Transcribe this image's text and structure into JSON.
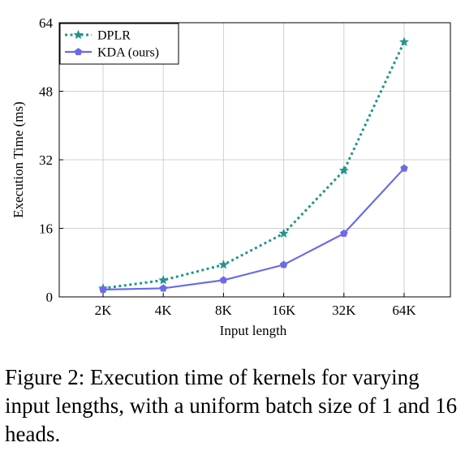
{
  "chart_data": {
    "type": "line",
    "categories": [
      "2K",
      "4K",
      "8K",
      "16K",
      "32K",
      "64K"
    ],
    "series": [
      {
        "name": "DPLR",
        "color": "#21958b",
        "style": "dotted",
        "marker": "star",
        "values": [
          2.0,
          3.9,
          7.5,
          14.8,
          29.5,
          59.5
        ]
      },
      {
        "name": "KDA (ours)",
        "color": "#6b6be8",
        "style": "solid",
        "marker": "pentagon",
        "values": [
          1.7,
          2.0,
          3.9,
          7.5,
          14.8,
          30.0
        ]
      }
    ],
    "xlabel": "Input length",
    "ylabel": "Execution Time (ms)",
    "ylim": [
      0,
      64
    ],
    "yticks": [
      0,
      16,
      32,
      48,
      64
    ],
    "grid": true,
    "legend_position": "top-left"
  },
  "caption": {
    "text": "Figure 2: Execution time of kernels for varying input lengths, with a uniform batch size of 1 and 16 heads."
  }
}
